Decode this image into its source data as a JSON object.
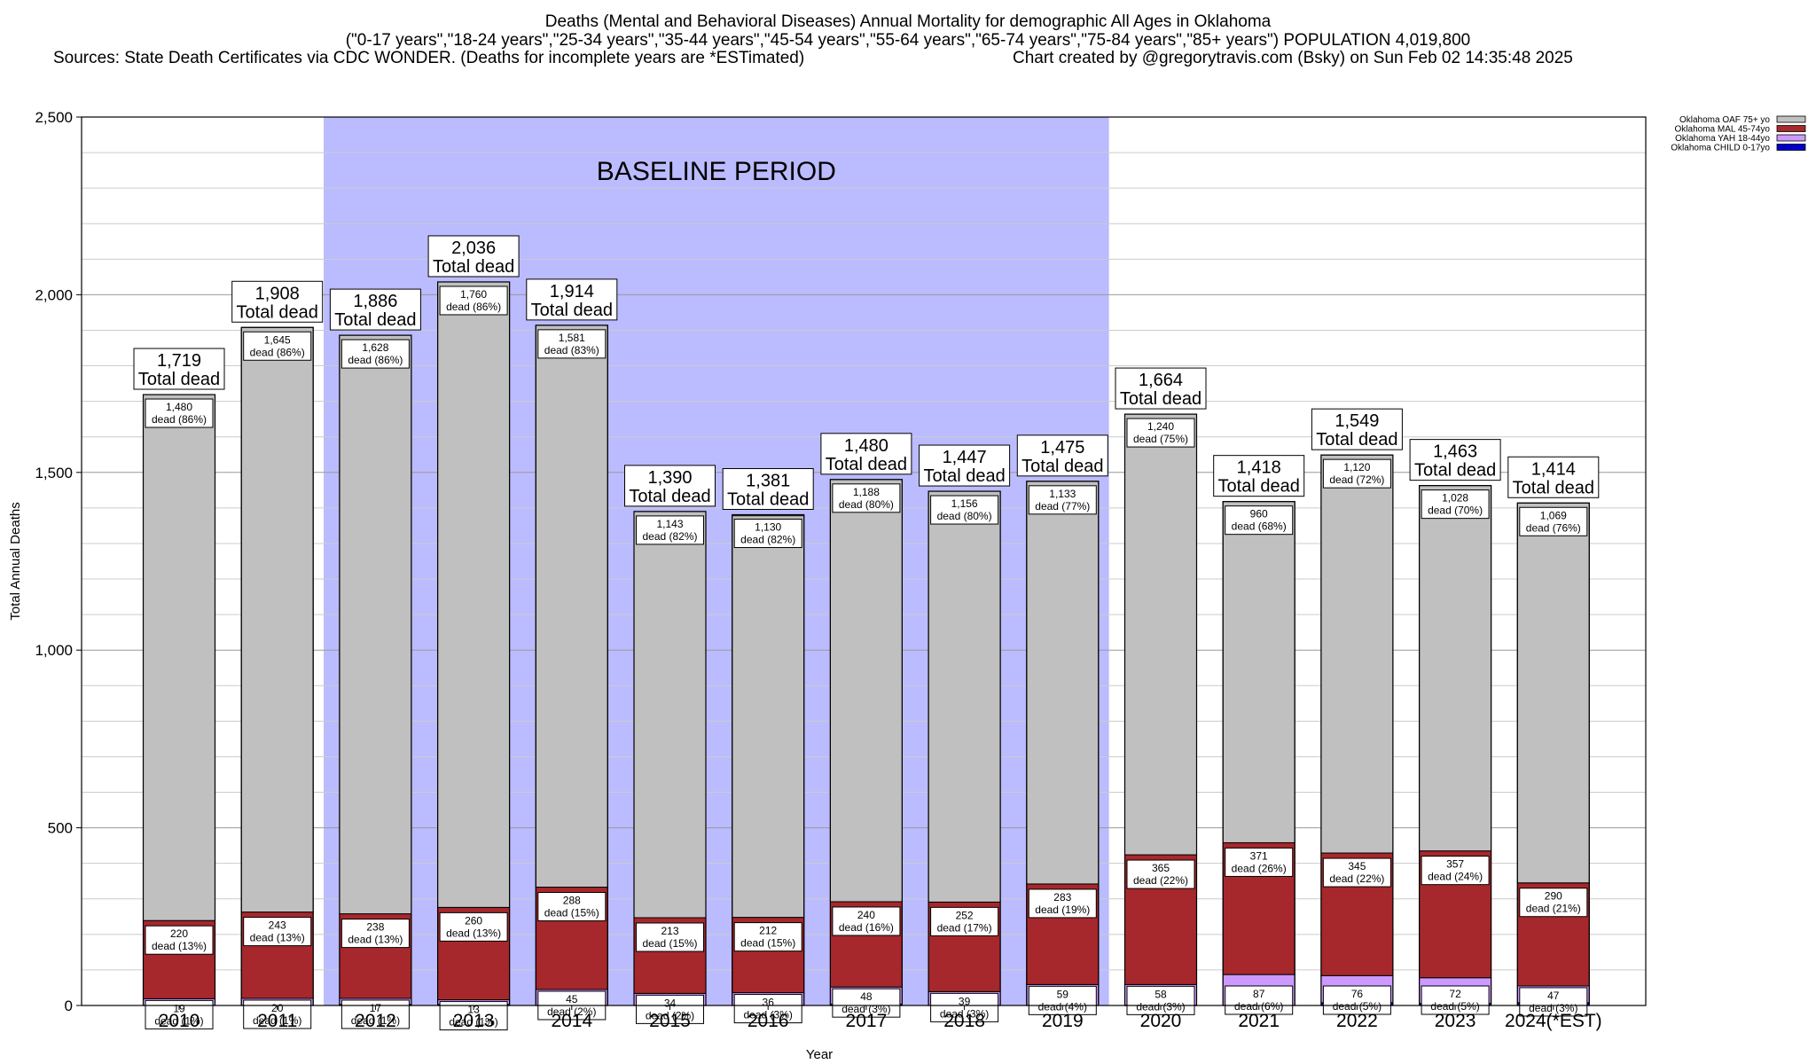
{
  "title": {
    "line1": "Deaths (Mental and Behavioral Diseases) Annual Mortality for demographic All Ages in Oklahoma",
    "line2": "(\"0-17 years\",\"18-24 years\",\"25-34 years\",\"35-44 years\",\"45-54 years\",\"55-64 years\",\"65-74 years\",\"75-84 years\",\"85+ years\") POPULATION 4,019,800",
    "line3a": "Sources: State Death Certificates via CDC WONDER. (Deaths for incomplete years are *ESTimated)",
    "line3b": "Chart created by @gregorytravis.com (Bsky) on Sun Feb 02 14:35:48 2025"
  },
  "chart_data": {
    "type": "bar",
    "stacked": true,
    "categories": [
      "2010",
      "2011",
      "2012",
      "2013",
      "2014",
      "2015",
      "2016",
      "2017",
      "2018",
      "2019",
      "2020",
      "2021",
      "2022",
      "2023",
      "2024(*EST)"
    ],
    "totals": [
      1719,
      1908,
      1886,
      2036,
      1914,
      1390,
      1381,
      1480,
      1447,
      1475,
      1664,
      1418,
      1549,
      1463,
      1414
    ],
    "total_label_suffix": "Total dead",
    "series": [
      {
        "name": "Oklahoma CHILD 0-17yo",
        "color": "#0000cc",
        "values": [
          0,
          0,
          3,
          3,
          0,
          0,
          0,
          4,
          0,
          0,
          1,
          0,
          8,
          6,
          8
        ],
        "labels": [],
        "pcts": []
      },
      {
        "name": "Oklahoma YAH 18-44yo",
        "color": "#cc99ff",
        "values": [
          19,
          20,
          17,
          13,
          45,
          34,
          36,
          48,
          39,
          59,
          58,
          87,
          76,
          72,
          47
        ],
        "labels": [
          "19",
          "20",
          "17",
          "13",
          "45",
          "34",
          "36",
          "48",
          "39",
          "59",
          "58",
          "87",
          "76",
          "72",
          "47"
        ],
        "pcts": [
          "1%",
          "1%",
          "1%",
          "1%",
          "2%",
          "2%",
          "3%",
          "3%",
          "3%",
          "4%",
          "3%",
          "6%",
          "5%",
          "5%",
          "3%"
        ]
      },
      {
        "name": "Oklahoma MAL 45-74yo",
        "color": "#a6282c",
        "values": [
          220,
          243,
          238,
          260,
          288,
          213,
          212,
          240,
          252,
          283,
          365,
          371,
          345,
          357,
          290
        ],
        "labels": [
          "220",
          "243",
          "238",
          "260",
          "288",
          "213",
          "212",
          "240",
          "252",
          "283",
          "365",
          "371",
          "345",
          "357",
          "290"
        ],
        "pcts": [
          "13%",
          "13%",
          "13%",
          "13%",
          "15%",
          "15%",
          "15%",
          "16%",
          "17%",
          "19%",
          "22%",
          "26%",
          "22%",
          "24%",
          "21%"
        ]
      },
      {
        "name": "Oklahoma OAF 75+ yo",
        "color": "#c0c0c0",
        "values": [
          1480,
          1645,
          1628,
          1760,
          1581,
          1143,
          1130,
          1188,
          1156,
          1133,
          1240,
          960,
          1120,
          1028,
          1069
        ],
        "labels": [
          "1,480",
          "1,645",
          "1,628",
          "1,760",
          "1,581",
          "1,143",
          "1,130",
          "1,188",
          "1,156",
          "1,133",
          "1,240",
          "960",
          "1,120",
          "1,028",
          "1,069"
        ],
        "pcts": [
          "86%",
          "86%",
          "86%",
          "86%",
          "83%",
          "82%",
          "82%",
          "80%",
          "80%",
          "77%",
          "75%",
          "68%",
          "72%",
          "70%",
          "76%"
        ]
      }
    ],
    "legend_order": [
      "Oklahoma OAF 75+ yo",
      "Oklahoma MAL 45-74yo",
      "Oklahoma YAH 18-44yo",
      "Oklahoma CHILD 0-17yo"
    ],
    "legend_placement": "top-right",
    "dead_word": "dead",
    "ylabel": "Total Annual Deaths",
    "xlabel": "Year",
    "ylim": [
      0,
      2500
    ],
    "yticks": [
      0,
      500,
      1000,
      1500,
      2000,
      2500
    ],
    "ytick_labels": [
      "0",
      "500",
      "1,000",
      "1,500",
      "2,000",
      "2,500"
    ],
    "grid": true,
    "baseline": {
      "label": "BASELINE PERIOD",
      "from": "2012",
      "to": "2019",
      "color": "#bbbbff"
    }
  }
}
